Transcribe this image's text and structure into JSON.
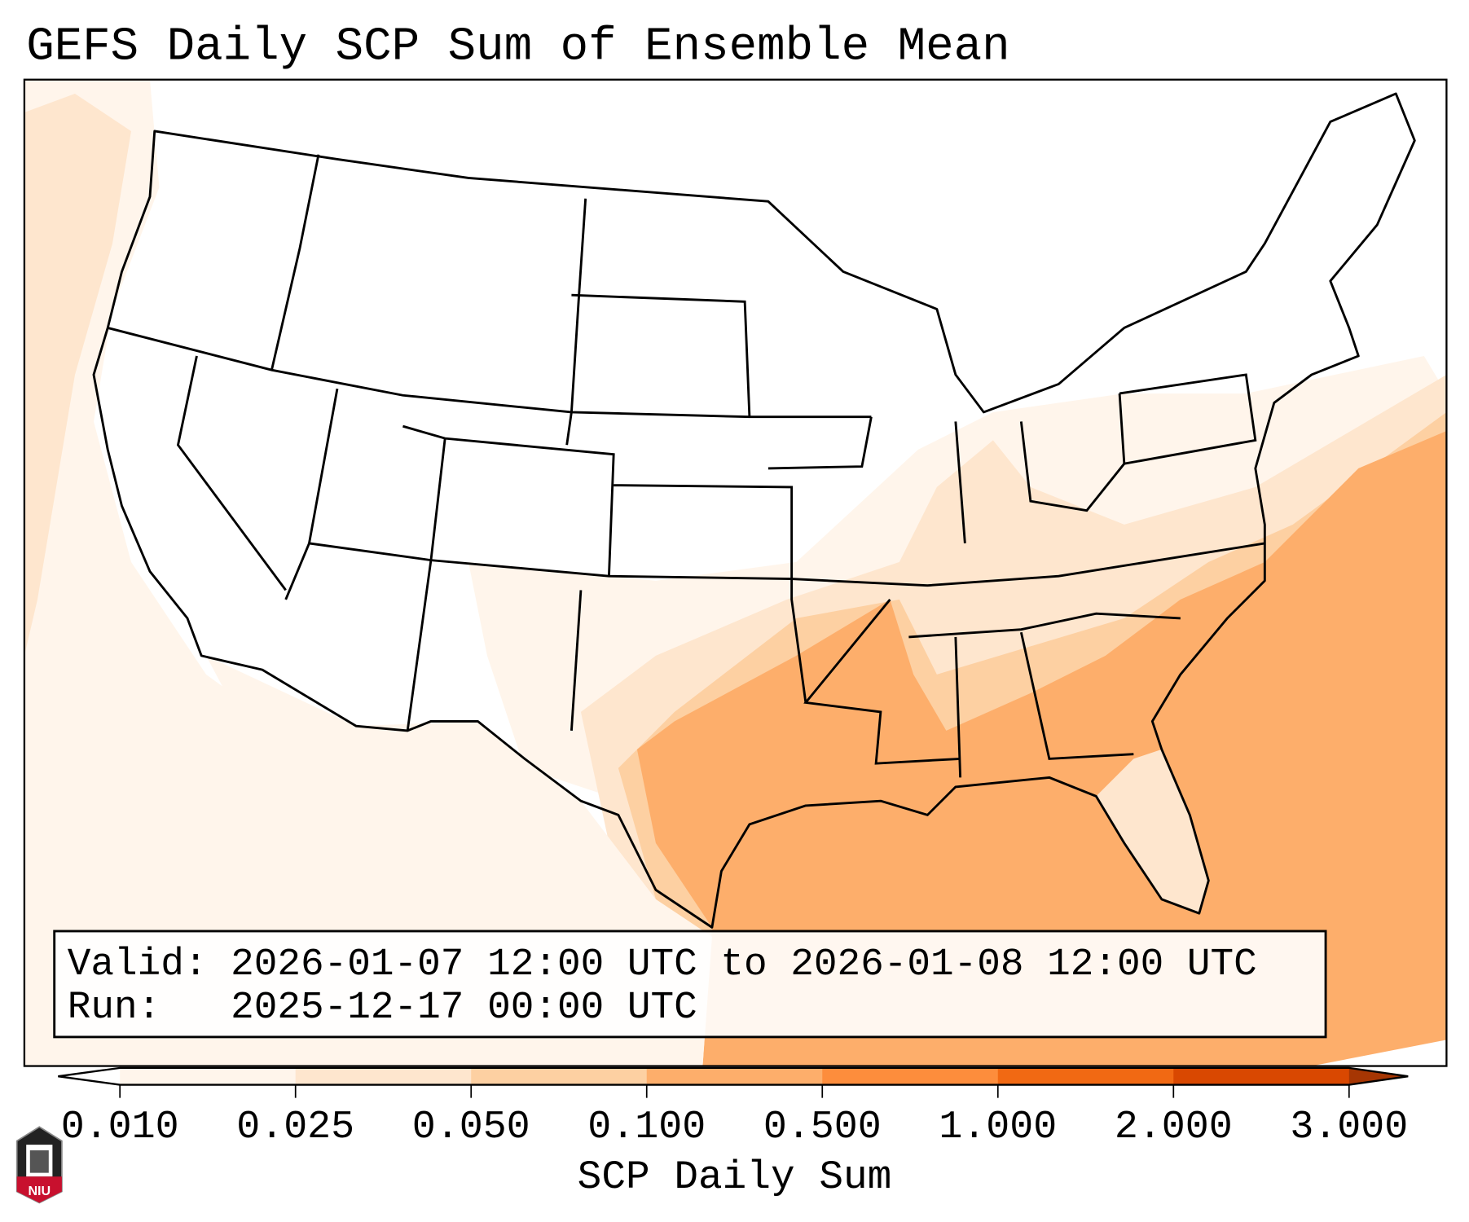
{
  "title": "GEFS Daily SCP Sum of Ensemble Mean",
  "info_box": {
    "valid_line": "Valid: 2026-01-07 12:00 UTC to 2026-01-08 12:00 UTC",
    "run_line": "Run:   2025-12-17 00:00 UTC"
  },
  "colorbar": {
    "label": "SCP Daily Sum",
    "ticks": [
      "0.010",
      "0.025",
      "0.050",
      "0.100",
      "0.500",
      "1.000",
      "2.000",
      "3.000"
    ],
    "extend_min_color": "#ffffff",
    "colors": [
      "#fff5eb",
      "#fee6ce",
      "#fdd0a2",
      "#fdae6b",
      "#fd8d3c",
      "#f16913",
      "#d94801"
    ],
    "extend_max_color": "#a63603"
  },
  "logo": {
    "text": "NIU"
  },
  "colors": {
    "low": "#fff5eb",
    "light": "#fee6ce",
    "mid": "#fdd0a2",
    "high": "#fdae6b"
  }
}
